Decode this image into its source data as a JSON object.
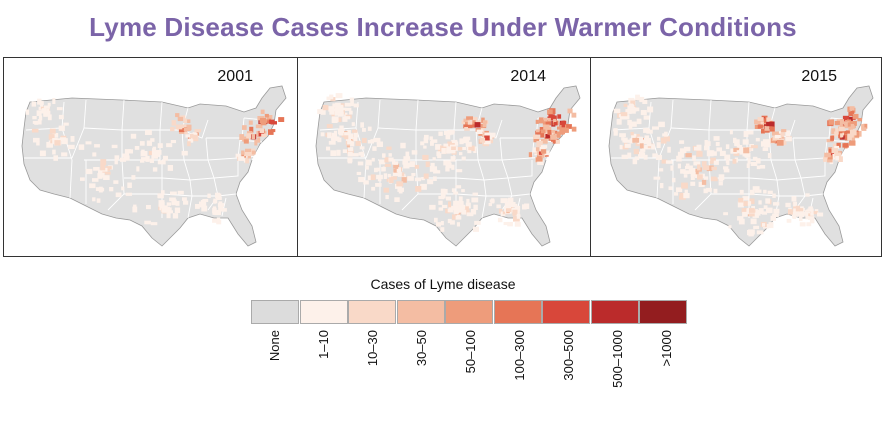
{
  "title": "Lyme Disease Cases Increase Under Warmer Conditions",
  "colors": {
    "title": "#7b64a8",
    "land": "#e0e0e0",
    "state_border": "#9a9a9a"
  },
  "panels": [
    {
      "year": "2001",
      "intensity": 1
    },
    {
      "year": "2014",
      "intensity": 2
    },
    {
      "year": "2015",
      "intensity": 2
    }
  ],
  "legend": {
    "title": "Cases of Lyme disease",
    "items": [
      {
        "label": "None",
        "color": "#dcdcdc"
      },
      {
        "label": "1–10",
        "color": "#fdf1ea"
      },
      {
        "label": "10–30",
        "color": "#f9d9c8"
      },
      {
        "label": "30–50",
        "color": "#f4bda3"
      },
      {
        "label": "50–100",
        "color": "#ee9c7b"
      },
      {
        "label": "100–300",
        "color": "#e67556"
      },
      {
        "label": "300–500",
        "color": "#d8473a"
      },
      {
        "label": "500–1000",
        "color": "#bb2b2b"
      },
      {
        "label": ">1000",
        "color": "#931d1f"
      }
    ]
  }
}
